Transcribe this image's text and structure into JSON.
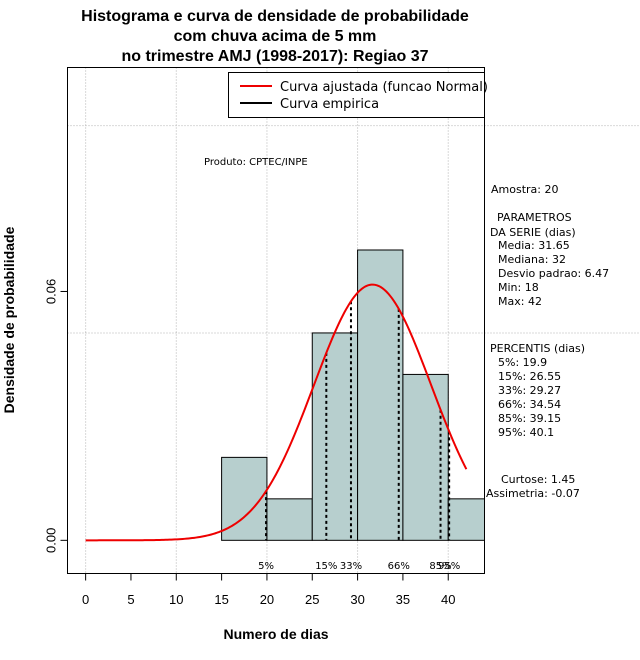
{
  "chart_data": {
    "type": "bar",
    "title_lines": [
      "Histograma e curva de densidade de probabilidade",
      "com chuva acima de 5 mm",
      "no trimestre AMJ (1998-2017): Regiao 37"
    ],
    "xlabel": "Numero de dias",
    "ylabel": "Densidade de probabilidade",
    "xlim": [
      -2,
      44
    ],
    "ylim": [
      -0.008,
      0.114
    ],
    "x_ticks": [
      0,
      5,
      10,
      15,
      20,
      25,
      30,
      35,
      40
    ],
    "x_tick_labels": [
      "0",
      "5",
      "10",
      "15",
      "20",
      "25",
      "30",
      "35",
      "40"
    ],
    "y_ticks": [
      0.0,
      0.06
    ],
    "y_tick_labels": [
      "0.00",
      "0.06"
    ],
    "grid": true,
    "grid_x": [
      0,
      10,
      20,
      30,
      40
    ],
    "grid_y": [
      0.05,
      0.1
    ],
    "bins": [
      {
        "left": 15,
        "right": 20,
        "density": 0.02
      },
      {
        "left": 20,
        "right": 25,
        "density": 0.01
      },
      {
        "left": 25,
        "right": 30,
        "density": 0.05
      },
      {
        "left": 30,
        "right": 35,
        "density": 0.07
      },
      {
        "left": 35,
        "right": 40,
        "density": 0.04
      },
      {
        "left": 40,
        "right": 45,
        "density": 0.01
      }
    ],
    "bar_color": "#b7cfce",
    "normal_curve": {
      "mean": 31.65,
      "sd": 6.47,
      "x_from": 0,
      "x_to": 42,
      "color": "#ee0000"
    },
    "percentiles": [
      {
        "label": "5%",
        "value": 19.9
      },
      {
        "label": "15%",
        "value": 26.55
      },
      {
        "label": "33%",
        "value": 29.27
      },
      {
        "label": "66%",
        "value": 34.54
      },
      {
        "label": "85%",
        "value": 39.15
      },
      {
        "label": "95%",
        "value": 40.1
      }
    ],
    "legend": {
      "position": "top-right",
      "entries": [
        {
          "label": "Curva ajustada (funcao Normal)",
          "color": "#ee0000"
        },
        {
          "label": "Curva empirica",
          "color": "#000000"
        }
      ]
    },
    "annotation": "Produto: CPTEC/INPE",
    "sidebar": {
      "sample": "Amostra: 20",
      "params_header": [
        "PARAMETROS",
        "DA SERIE (dias)"
      ],
      "params": [
        "Media: 31.65",
        "Mediana: 32",
        "Desvio padrao: 6.47",
        "Min: 18",
        "Max: 42"
      ],
      "percentis_header": "PERCENTIS (dias)",
      "percentis": [
        "5%: 19.9",
        "15%: 26.55",
        "33%: 29.27",
        "66%: 34.54",
        "85%: 39.15",
        "95%: 40.1"
      ],
      "shape": [
        "Curtose: 1.45",
        "Assimetria: -0.07"
      ]
    }
  }
}
